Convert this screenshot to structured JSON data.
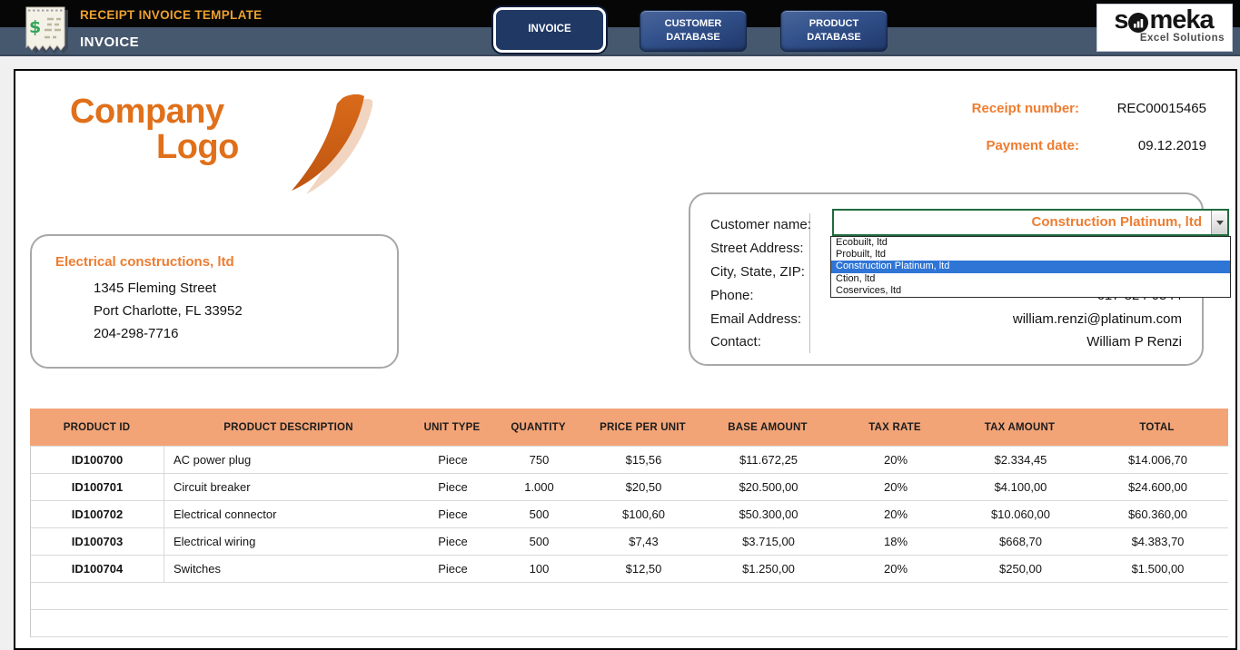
{
  "nav": {
    "template_title": "RECEIPT INVOICE TEMPLATE",
    "sheet_title": "INVOICE",
    "buttons": [
      {
        "label": "INVOICE",
        "active": true
      },
      {
        "label": "CUSTOMER DATABASE",
        "active": false
      },
      {
        "label": "PRODUCT DATABASE",
        "active": false
      }
    ],
    "brand": {
      "word_left": "s",
      "word_right": "meka",
      "tagline": "Excel Solutions"
    }
  },
  "meta": {
    "receipt_label": "Receipt number:",
    "receipt_value": "REC00015465",
    "date_label": "Payment date:",
    "date_value": "09.12.2019"
  },
  "seller": {
    "logo_line1": "Company",
    "logo_line2": "Logo",
    "name": "Electrical constructions, ltd",
    "address_lines": [
      "1345 Fleming Street",
      "Port Charlotte, FL 33952",
      "204-298-7716"
    ]
  },
  "customer": {
    "rows": [
      {
        "label": "Customer name:",
        "value": ""
      },
      {
        "label": "Street Address:",
        "value": ""
      },
      {
        "label": "City, State, ZIP:",
        "value": ""
      },
      {
        "label": "Phone:",
        "value": "617-824-0544"
      },
      {
        "label": "Email Address:",
        "value": "william.renzi@platinum.com"
      },
      {
        "label": "Contact:",
        "value": "William P Renzi"
      }
    ],
    "selected_name": "Construction Platinum, ltd",
    "options": [
      "Ecobuilt, ltd",
      "Probuilt, ltd",
      "Construction Platinum, ltd",
      "Ction, ltd",
      "Coservices, ltd"
    ],
    "selected_index": 2
  },
  "invoice_table": {
    "columns": [
      "PRODUCT ID",
      "PRODUCT DESCRIPTION",
      "UNIT TYPE",
      "QUANTITY",
      "PRICE PER UNIT",
      "BASE AMOUNT",
      "TAX RATE",
      "TAX AMOUNT",
      "TOTAL"
    ],
    "rows": [
      [
        "ID100700",
        "AC power plug",
        "Piece",
        "750",
        "$15,56",
        "$11.672,25",
        "20%",
        "$2.334,45",
        "$14.006,70"
      ],
      [
        "ID100701",
        "Circuit breaker",
        "Piece",
        "1.000",
        "$20,50",
        "$20.500,00",
        "20%",
        "$4.100,00",
        "$24.600,00"
      ],
      [
        "ID100702",
        "Electrical connector",
        "Piece",
        "500",
        "$100,60",
        "$50.300,00",
        "20%",
        "$10.060,00",
        "$60.360,00"
      ],
      [
        "ID100703",
        "Electrical wiring",
        "Piece",
        "500",
        "$7,43",
        "$3.715,00",
        "18%",
        "$668,70",
        "$4.383,70"
      ],
      [
        "ID100704",
        "Switches",
        "Piece",
        "100",
        "$12,50",
        "$1.250,00",
        "20%",
        "$250,00",
        "$1.500,00"
      ]
    ],
    "empty_rows": 2
  },
  "colors": {
    "accent_orange": "#ED7D31",
    "title_gold": "#EDA12F",
    "table_header": "#F2A477",
    "nav_navy": "#1F3864",
    "band_slate": "#46586E",
    "highlight_blue": "#2E75D6",
    "combo_green": "#1F6B3C"
  }
}
